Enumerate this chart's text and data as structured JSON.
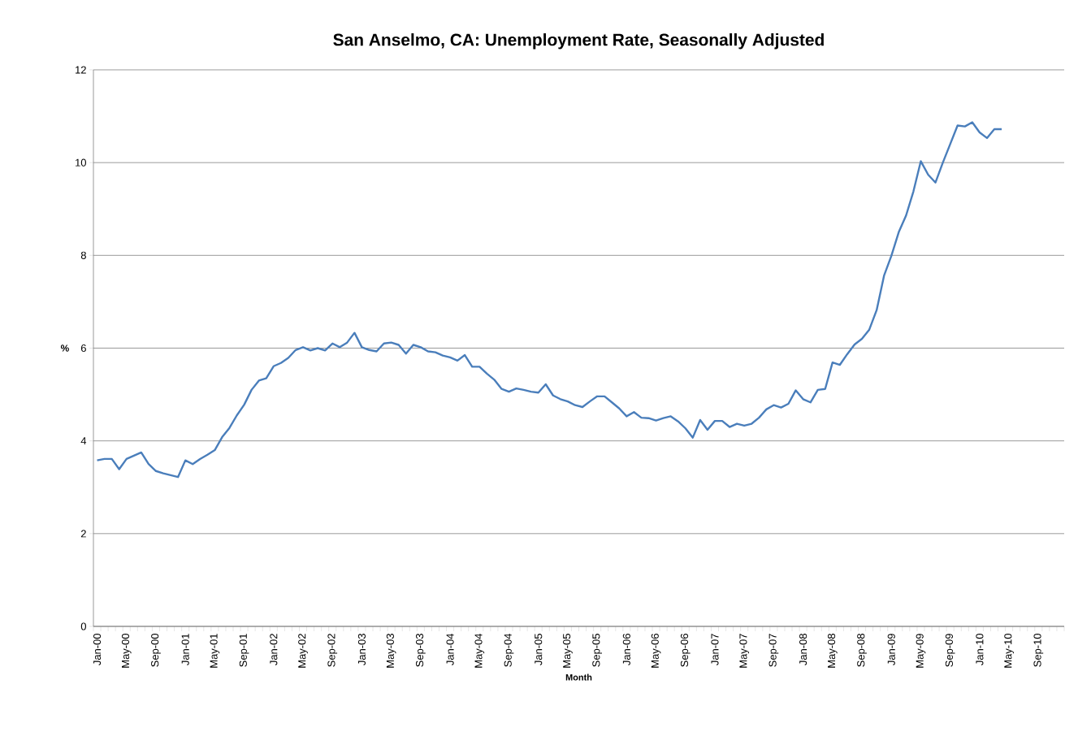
{
  "chart_data": {
    "type": "line",
    "title": "San Anselmo, CA: Unemployment Rate, Seasonally Adjusted",
    "xlabel": "Month",
    "ylabel": "%",
    "categories": [
      "Jan-00",
      null,
      null,
      null,
      "May-00",
      null,
      null,
      null,
      "Sep-00",
      null,
      null,
      null,
      "Jan-01",
      null,
      null,
      null,
      "May-01",
      null,
      null,
      null,
      "Sep-01",
      null,
      null,
      null,
      "Jan-02",
      null,
      null,
      null,
      "May-02",
      null,
      null,
      null,
      "Sep-02",
      null,
      null,
      null,
      "Jan-03",
      null,
      null,
      null,
      "May-03",
      null,
      null,
      null,
      "Sep-03",
      null,
      null,
      null,
      "Jan-04",
      null,
      null,
      null,
      "May-04",
      null,
      null,
      null,
      "Sep-04",
      null,
      null,
      null,
      "Jan-05",
      null,
      null,
      null,
      "May-05",
      null,
      null,
      null,
      "Sep-05",
      null,
      null,
      null,
      "Jan-06",
      null,
      null,
      null,
      "May-06",
      null,
      null,
      null,
      "Sep-06",
      null,
      null,
      null,
      "Jan-07",
      null,
      null,
      null,
      "May-07",
      null,
      null,
      null,
      "Sep-07",
      null,
      null,
      null,
      "Jan-08",
      null,
      null,
      null,
      "May-08",
      null,
      null,
      null,
      "Sep-08",
      null,
      null,
      null,
      "Jan-09",
      null,
      null,
      null,
      "May-09",
      null,
      null,
      null,
      "Sep-09",
      null,
      null,
      null,
      "Jan-10",
      null,
      null,
      null,
      "May-10",
      null,
      null,
      null,
      "Sep-10",
      null,
      null,
      null
    ],
    "series": [
      {
        "color": "#4a7ebb",
        "values": [
          3.58,
          3.61,
          3.61,
          3.39,
          3.61,
          3.68,
          3.75,
          3.5,
          3.35,
          3.3,
          3.26,
          3.22,
          3.58,
          3.5,
          3.61,
          3.7,
          3.8,
          4.08,
          4.28,
          4.55,
          4.78,
          5.1,
          5.3,
          5.35,
          5.61,
          5.68,
          5.79,
          5.96,
          6.02,
          5.95,
          6.0,
          5.95,
          6.1,
          6.02,
          6.12,
          6.33,
          6.02,
          5.96,
          5.93,
          6.1,
          6.12,
          6.07,
          5.88,
          6.07,
          6.02,
          5.93,
          5.91,
          5.84,
          5.8,
          5.73,
          5.85,
          5.6,
          5.6,
          5.45,
          5.32,
          5.12,
          5.06,
          5.13,
          5.1,
          5.06,
          5.04,
          5.22,
          4.98,
          4.9,
          4.85,
          4.77,
          4.73,
          4.85,
          4.96,
          4.96,
          4.83,
          4.7,
          4.53,
          4.62,
          4.5,
          4.49,
          4.44,
          4.49,
          4.53,
          4.42,
          4.27,
          4.07,
          4.45,
          4.24,
          4.43,
          4.43,
          4.3,
          4.37,
          4.33,
          4.37,
          4.5,
          4.68,
          4.77,
          4.72,
          4.8,
          5.09,
          4.9,
          4.83,
          5.1,
          5.12,
          5.69,
          5.64,
          5.87,
          6.08,
          6.2,
          6.4,
          6.82,
          7.56,
          7.99,
          8.5,
          8.86,
          9.38,
          10.03,
          9.74,
          9.57,
          10.0,
          10.4,
          10.8,
          10.78,
          10.87,
          10.65,
          10.53,
          10.72,
          10.72,
          null,
          null,
          null,
          null,
          null,
          null,
          null,
          null
        ]
      }
    ],
    "ylim": [
      0,
      12
    ],
    "yticks": [
      0,
      2,
      4,
      6,
      8,
      10,
      12
    ],
    "grid": "y"
  }
}
